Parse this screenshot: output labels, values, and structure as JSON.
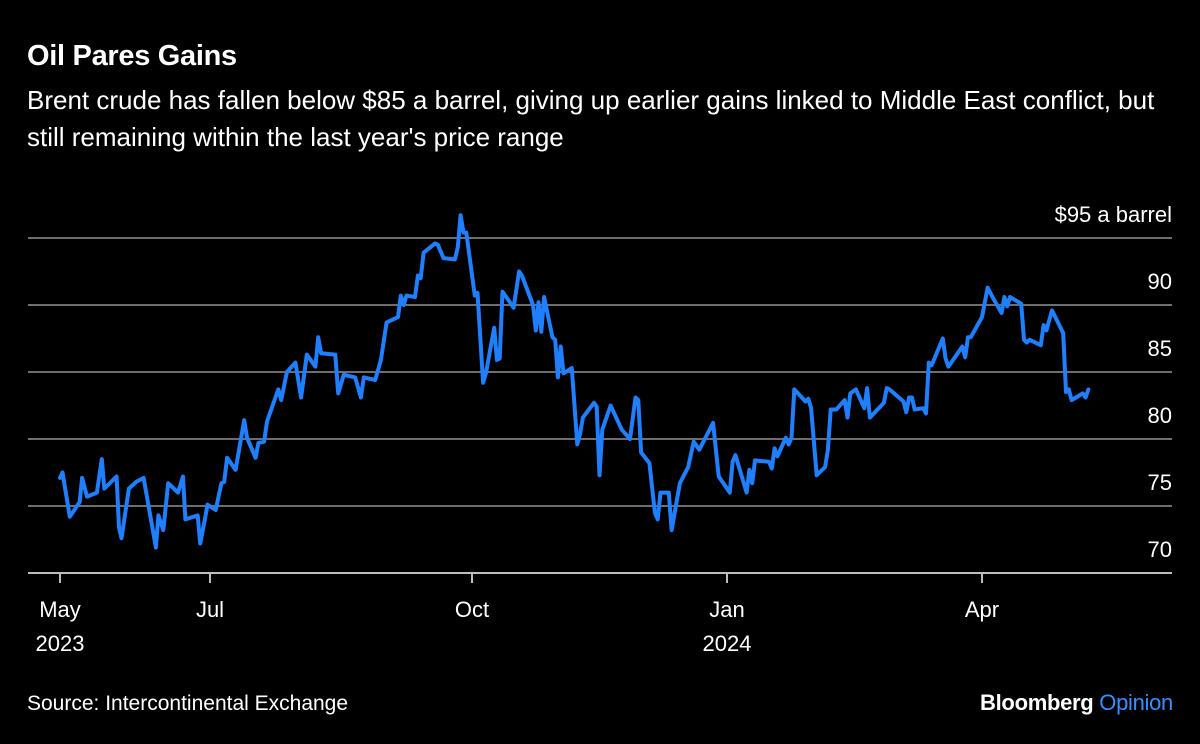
{
  "header": {
    "title": "Oil Pares Gains",
    "subtitle": "Brent crude has fallen below $85 a barrel, giving up earlier gains linked to Middle East conflict, but still remaining within the last year's price range"
  },
  "footer": {
    "source": "Source: Intercontinental Exchange",
    "logo_main": "Bloomberg",
    "logo_accent": "Opinion"
  },
  "colors": {
    "line": "#1f7fff",
    "grid": "#6e6e6e",
    "axis": "#bdbdbd",
    "background": "#000000",
    "logo_accent": "#3a8dff"
  },
  "chart_data": {
    "type": "line",
    "title": "Oil Pares Gains",
    "ylabel": "",
    "y_unit_label": "$95 a barrel",
    "ylim": [
      70,
      95
    ],
    "yticks": [
      {
        "value": 95,
        "label": "$95 a barrel"
      },
      {
        "value": 90,
        "label": "90"
      },
      {
        "value": 85,
        "label": "85"
      },
      {
        "value": 80,
        "label": "80"
      },
      {
        "value": 75,
        "label": "75"
      },
      {
        "value": 70,
        "label": "70"
      }
    ],
    "xticks": [
      {
        "date": "2023-05-01",
        "label": "May",
        "sublabel": "2023"
      },
      {
        "date": "2023-07-01",
        "label": "Jul",
        "sublabel": ""
      },
      {
        "date": "2023-10-01",
        "label": "Oct",
        "sublabel": ""
      },
      {
        "date": "2024-01-01",
        "label": "Jan",
        "sublabel": "2024"
      },
      {
        "date": "2024-04-01",
        "label": "Apr",
        "sublabel": ""
      }
    ],
    "grid": true,
    "series": [
      {
        "points": [
          [
            "2023-05-01",
            77.1
          ],
          [
            "2023-05-02",
            77.5
          ],
          [
            "2023-05-05",
            74.2
          ],
          [
            "2023-05-09",
            75.3
          ],
          [
            "2023-05-10",
            77.1
          ],
          [
            "2023-05-12",
            75.7
          ],
          [
            "2023-05-16",
            76.0
          ],
          [
            "2023-05-18",
            78.5
          ],
          [
            "2023-05-19",
            76.3
          ],
          [
            "2023-05-24",
            77.2
          ],
          [
            "2023-05-25",
            73.4
          ],
          [
            "2023-05-26",
            72.6
          ],
          [
            "2023-05-29",
            76.3
          ],
          [
            "2023-06-01",
            76.8
          ],
          [
            "2023-06-04",
            77.1
          ],
          [
            "2023-06-09",
            71.9
          ],
          [
            "2023-06-10",
            74.3
          ],
          [
            "2023-06-12",
            73.2
          ],
          [
            "2023-06-14",
            76.7
          ],
          [
            "2023-06-18",
            76.0
          ],
          [
            "2023-06-20",
            77.2
          ],
          [
            "2023-06-21",
            74.0
          ],
          [
            "2023-06-26",
            74.3
          ],
          [
            "2023-06-27",
            72.2
          ],
          [
            "2023-06-29",
            74.1
          ],
          [
            "2023-06-30",
            75.1
          ],
          [
            "2023-07-03",
            74.7
          ],
          [
            "2023-07-05",
            76.7
          ],
          [
            "2023-07-06",
            76.8
          ],
          [
            "2023-07-07",
            78.6
          ],
          [
            "2023-07-10",
            77.7
          ],
          [
            "2023-07-13",
            81.4
          ],
          [
            "2023-07-14",
            80.1
          ],
          [
            "2023-07-17",
            78.6
          ],
          [
            "2023-07-18",
            79.7
          ],
          [
            "2023-07-20",
            79.8
          ],
          [
            "2023-07-21",
            81.3
          ],
          [
            "2023-07-25",
            83.7
          ],
          [
            "2023-07-26",
            82.9
          ],
          [
            "2023-07-28",
            85.0
          ],
          [
            "2023-07-31",
            85.7
          ],
          [
            "2023-08-02",
            83.1
          ],
          [
            "2023-08-04",
            86.3
          ],
          [
            "2023-08-07",
            85.4
          ],
          [
            "2023-08-08",
            87.6
          ],
          [
            "2023-08-09",
            86.4
          ],
          [
            "2023-08-14",
            86.3
          ],
          [
            "2023-08-15",
            83.4
          ],
          [
            "2023-08-17",
            84.8
          ],
          [
            "2023-08-21",
            84.6
          ],
          [
            "2023-08-23",
            83.1
          ],
          [
            "2023-08-24",
            84.6
          ],
          [
            "2023-08-28",
            84.4
          ],
          [
            "2023-08-30",
            85.9
          ],
          [
            "2023-09-01",
            88.7
          ],
          [
            "2023-09-05",
            89.1
          ],
          [
            "2023-09-06",
            90.7
          ],
          [
            "2023-09-07",
            90.0
          ],
          [
            "2023-09-08",
            90.7
          ],
          [
            "2023-09-11",
            90.6
          ],
          [
            "2023-09-12",
            92.2
          ],
          [
            "2023-09-13",
            92.0
          ],
          [
            "2023-09-14",
            93.9
          ],
          [
            "2023-09-18",
            94.6
          ],
          [
            "2023-09-19",
            94.5
          ],
          [
            "2023-09-21",
            93.5
          ],
          [
            "2023-09-25",
            93.4
          ],
          [
            "2023-09-26",
            94.3
          ],
          [
            "2023-09-27",
            96.7
          ],
          [
            "2023-09-28",
            95.4
          ],
          [
            "2023-09-29",
            95.4
          ],
          [
            "2023-10-02",
            90.7
          ],
          [
            "2023-10-03",
            90.9
          ],
          [
            "2023-10-05",
            84.2
          ],
          [
            "2023-10-06",
            84.9
          ],
          [
            "2023-10-09",
            88.3
          ],
          [
            "2023-10-10",
            85.9
          ],
          [
            "2023-10-11",
            86.0
          ],
          [
            "2023-10-12",
            91.0
          ],
          [
            "2023-10-16",
            89.8
          ],
          [
            "2023-10-18",
            92.5
          ],
          [
            "2023-10-19",
            92.2
          ],
          [
            "2023-10-23",
            90.0
          ],
          [
            "2023-10-24",
            88.1
          ],
          [
            "2023-10-25",
            90.2
          ],
          [
            "2023-10-26",
            88.0
          ],
          [
            "2023-10-27",
            90.6
          ],
          [
            "2023-10-30",
            87.6
          ],
          [
            "2023-10-31",
            87.4
          ],
          [
            "2023-11-01",
            84.6
          ],
          [
            "2023-11-02",
            86.9
          ],
          [
            "2023-11-03",
            84.9
          ],
          [
            "2023-11-06",
            85.3
          ],
          [
            "2023-11-08",
            79.6
          ],
          [
            "2023-11-09",
            80.4
          ],
          [
            "2023-11-10",
            81.6
          ],
          [
            "2023-11-14",
            82.7
          ],
          [
            "2023-11-15",
            82.4
          ],
          [
            "2023-11-16",
            77.3
          ],
          [
            "2023-11-17",
            80.7
          ],
          [
            "2023-11-20",
            82.5
          ],
          [
            "2023-11-24",
            80.7
          ],
          [
            "2023-11-27",
            80.0
          ],
          [
            "2023-11-29",
            83.1
          ],
          [
            "2023-11-30",
            82.9
          ],
          [
            "2023-12-01",
            79.0
          ],
          [
            "2023-12-04",
            78.2
          ],
          [
            "2023-12-06",
            74.5
          ],
          [
            "2023-12-07",
            74.0
          ],
          [
            "2023-12-08",
            76.0
          ],
          [
            "2023-12-11",
            76.0
          ],
          [
            "2023-12-12",
            73.2
          ],
          [
            "2023-12-15",
            76.7
          ],
          [
            "2023-12-18",
            77.9
          ],
          [
            "2023-12-20",
            79.8
          ],
          [
            "2023-12-22",
            79.2
          ],
          [
            "2023-12-27",
            81.2
          ],
          [
            "2023-12-29",
            77.2
          ],
          [
            "2024-01-02",
            76.0
          ],
          [
            "2024-01-03",
            78.3
          ],
          [
            "2024-01-04",
            78.8
          ],
          [
            "2024-01-08",
            76.0
          ],
          [
            "2024-01-09",
            77.7
          ],
          [
            "2024-01-10",
            76.7
          ],
          [
            "2024-01-11",
            78.4
          ],
          [
            "2024-01-16",
            78.3
          ],
          [
            "2024-01-17",
            77.8
          ],
          [
            "2024-01-18",
            79.3
          ],
          [
            "2024-01-19",
            78.7
          ],
          [
            "2024-01-22",
            80.1
          ],
          [
            "2024-01-23",
            79.6
          ],
          [
            "2024-01-24",
            80.1
          ],
          [
            "2024-01-25",
            83.7
          ],
          [
            "2024-01-29",
            82.8
          ],
          [
            "2024-01-30",
            83.0
          ],
          [
            "2024-01-31",
            82.3
          ],
          [
            "2024-02-02",
            77.3
          ],
          [
            "2024-02-05",
            77.9
          ],
          [
            "2024-02-06",
            79.2
          ],
          [
            "2024-02-07",
            82.2
          ],
          [
            "2024-02-09",
            82.2
          ],
          [
            "2024-02-12",
            82.9
          ],
          [
            "2024-02-13",
            81.6
          ],
          [
            "2024-02-14",
            83.4
          ],
          [
            "2024-02-16",
            83.7
          ],
          [
            "2024-02-19",
            82.3
          ],
          [
            "2024-02-20",
            83.8
          ],
          [
            "2024-02-21",
            81.6
          ],
          [
            "2024-02-26",
            82.7
          ],
          [
            "2024-02-27",
            83.8
          ],
          [
            "2024-02-28",
            83.7
          ],
          [
            "2024-03-04",
            82.8
          ],
          [
            "2024-03-05",
            82.0
          ],
          [
            "2024-03-06",
            83.1
          ],
          [
            "2024-03-07",
            83.1
          ],
          [
            "2024-03-08",
            82.2
          ],
          [
            "2024-03-11",
            82.3
          ],
          [
            "2024-03-12",
            81.9
          ],
          [
            "2024-03-13",
            85.7
          ],
          [
            "2024-03-14",
            85.5
          ],
          [
            "2024-03-18",
            87.5
          ],
          [
            "2024-03-19",
            86.0
          ],
          [
            "2024-03-20",
            85.4
          ],
          [
            "2024-03-25",
            86.9
          ],
          [
            "2024-03-26",
            86.1
          ],
          [
            "2024-03-27",
            87.6
          ],
          [
            "2024-03-28",
            87.6
          ],
          [
            "2024-04-01",
            89.1
          ],
          [
            "2024-04-03",
            91.3
          ],
          [
            "2024-04-05",
            90.5
          ],
          [
            "2024-04-08",
            89.4
          ],
          [
            "2024-04-09",
            90.6
          ],
          [
            "2024-04-10",
            89.9
          ],
          [
            "2024-04-11",
            90.6
          ],
          [
            "2024-04-15",
            90.1
          ],
          [
            "2024-04-16",
            87.4
          ],
          [
            "2024-04-17",
            87.2
          ],
          [
            "2024-04-18",
            87.4
          ],
          [
            "2024-04-22",
            87.0
          ],
          [
            "2024-04-23",
            88.5
          ],
          [
            "2024-04-24",
            88.1
          ],
          [
            "2024-04-26",
            89.6
          ],
          [
            "2024-04-30",
            87.9
          ],
          [
            "2024-05-01",
            83.5
          ],
          [
            "2024-05-02",
            83.7
          ],
          [
            "2024-05-03",
            82.9
          ],
          [
            "2024-05-07",
            83.4
          ],
          [
            "2024-05-08",
            83.1
          ],
          [
            "2024-05-09",
            83.7
          ]
        ]
      }
    ]
  }
}
